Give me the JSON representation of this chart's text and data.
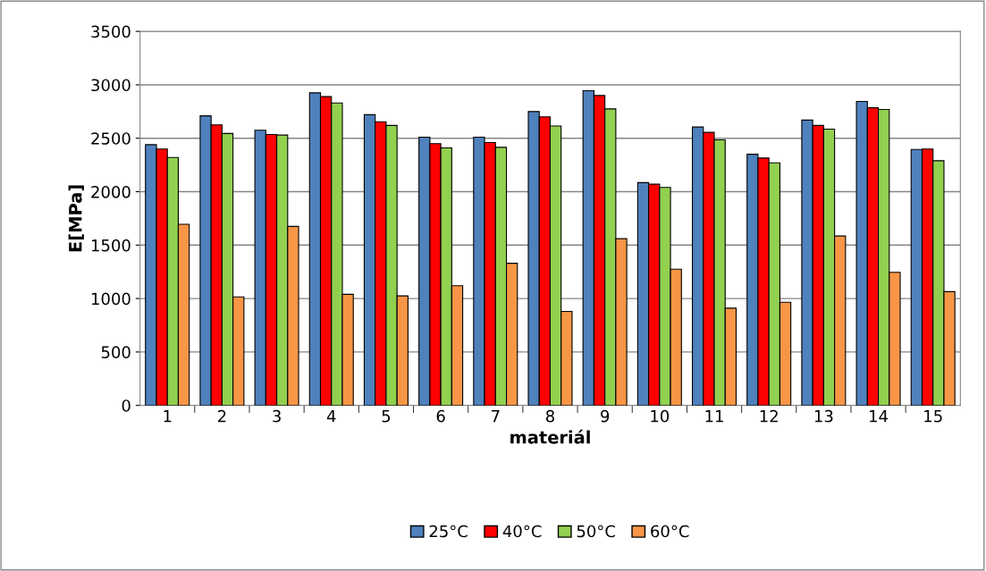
{
  "chart_data": {
    "type": "bar",
    "xlabel": "materiál",
    "ylabel": "E[MPa]",
    "categories": [
      "1",
      "2",
      "3",
      "4",
      "5",
      "6",
      "7",
      "8",
      "9",
      "10",
      "11",
      "12",
      "13",
      "14",
      "15"
    ],
    "series": [
      {
        "name": "25°C",
        "color": "#4f81bd",
        "values": [
          2440,
          2710,
          2575,
          2925,
          2720,
          2510,
          2510,
          2750,
          2945,
          2085,
          2605,
          2350,
          2670,
          2845,
          2395
        ]
      },
      {
        "name": "40°C",
        "color": "#ff0000",
        "values": [
          2400,
          2625,
          2535,
          2890,
          2655,
          2450,
          2460,
          2700,
          2900,
          2070,
          2555,
          2315,
          2620,
          2785,
          2400
        ]
      },
      {
        "name": "50°C",
        "color": "#92d050",
        "values": [
          2320,
          2545,
          2530,
          2830,
          2620,
          2410,
          2415,
          2615,
          2775,
          2040,
          2485,
          2270,
          2585,
          2770,
          2290
        ]
      },
      {
        "name": "60°C",
        "color": "#f79646",
        "values": [
          1695,
          1015,
          1675,
          1040,
          1025,
          1120,
          1330,
          880,
          1560,
          1275,
          910,
          965,
          1585,
          1245,
          1065
        ]
      }
    ],
    "ylim": [
      0,
      3500
    ],
    "yticks": [
      0,
      500,
      1000,
      1500,
      2000,
      2500,
      3000,
      3500
    ],
    "grid": "y",
    "legend": "bottom"
  }
}
